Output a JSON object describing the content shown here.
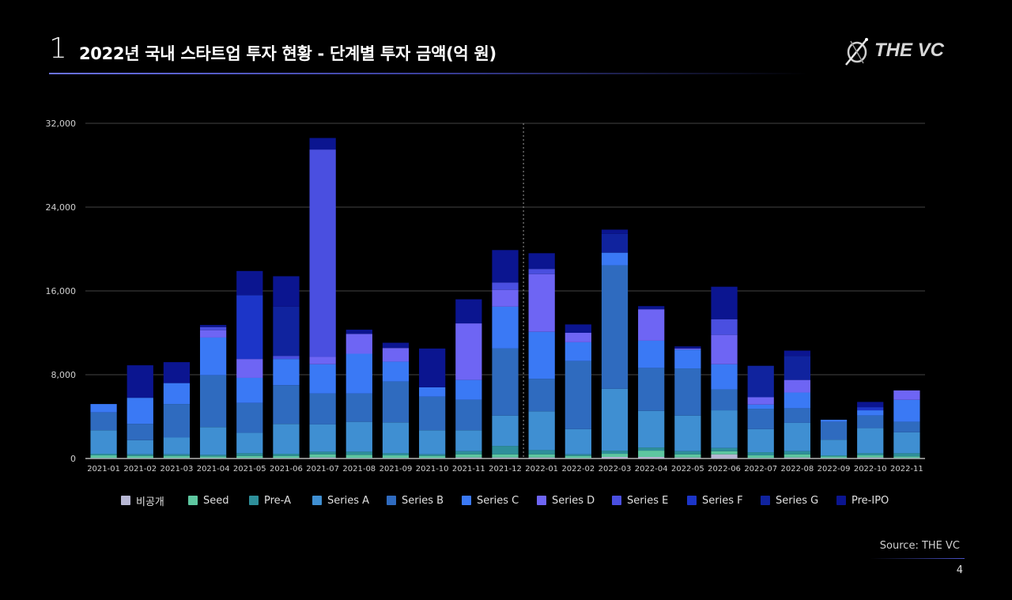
{
  "header": {
    "section_number": "1",
    "title": "2022년 국내 스타트업 투자 현황 - 단계별 투자 금액(억 원)",
    "logo_text": "THE VC"
  },
  "footer": {
    "source": "Source: THE VC",
    "page_number": "4"
  },
  "chart_data": {
    "type": "bar",
    "stacked": true,
    "title": "2022년 국내 스타트업 투자 현황 - 단계별 투자 금액(억 원)",
    "xlabel": "",
    "ylabel": "",
    "ylim": [
      0,
      32000
    ],
    "yticks": [
      0,
      8000,
      16000,
      24000,
      32000
    ],
    "ytick_labels": [
      "0",
      "8,000",
      "16,000",
      "24,000",
      "32,000"
    ],
    "grid": true,
    "divider_after": "2021-12",
    "legend_position": "bottom",
    "categories": [
      "2021-01",
      "2021-02",
      "2021-03",
      "2021-04",
      "2021-05",
      "2021-06",
      "2021-07",
      "2021-08",
      "2021-09",
      "2021-10",
      "2021-11",
      "2021-12",
      "2022-01",
      "2022-02",
      "2022-03",
      "2022-04",
      "2022-05",
      "2022-06",
      "2022-07",
      "2022-08",
      "2022-09",
      "2022-10",
      "2022-11"
    ],
    "series": [
      {
        "name": "비공개",
        "color": "#b7b7d4",
        "values": [
          50,
          50,
          50,
          50,
          50,
          50,
          100,
          50,
          50,
          50,
          100,
          100,
          100,
          50,
          150,
          150,
          100,
          400,
          50,
          100,
          50,
          100,
          50
        ]
      },
      {
        "name": "Seed",
        "color": "#5ec7a0",
        "values": [
          250,
          200,
          200,
          150,
          200,
          200,
          300,
          300,
          250,
          200,
          300,
          300,
          300,
          200,
          300,
          600,
          300,
          300,
          250,
          300,
          150,
          200,
          150
        ]
      },
      {
        "name": "Pre-A",
        "color": "#2e8f9a",
        "values": [
          150,
          150,
          150,
          150,
          250,
          200,
          250,
          300,
          200,
          150,
          300,
          800,
          400,
          150,
          300,
          300,
          300,
          300,
          300,
          300,
          100,
          200,
          300
        ]
      },
      {
        "name": "Series A",
        "color": "#3f8fd2",
        "values": [
          2250,
          1350,
          1600,
          2650,
          1950,
          2850,
          2600,
          2850,
          2950,
          2300,
          2000,
          2900,
          3700,
          2400,
          5900,
          3500,
          3400,
          3600,
          2200,
          2700,
          1500,
          2400,
          2000
        ]
      },
      {
        "name": "Series B",
        "color": "#2f6bbf",
        "values": [
          1700,
          1550,
          3200,
          4950,
          2850,
          3700,
          2950,
          2700,
          3900,
          3200,
          2900,
          6400,
          3100,
          6500,
          11800,
          4100,
          4500,
          2000,
          1950,
          1400,
          1700,
          1200,
          1000
        ]
      },
      {
        "name": "Series C",
        "color": "#3a79f5",
        "values": [
          800,
          2500,
          2000,
          3600,
          2400,
          2500,
          2800,
          3800,
          1900,
          900,
          1900,
          4000,
          4500,
          1800,
          1200,
          2600,
          1800,
          2400,
          400,
          1500,
          200,
          500,
          2100
        ]
      },
      {
        "name": "Series D",
        "color": "#6e65f4",
        "values": [
          0,
          0,
          0,
          700,
          1800,
          0,
          700,
          1900,
          1300,
          0,
          5400,
          1600,
          5500,
          900,
          0,
          3000,
          100,
          2800,
          700,
          1200,
          0,
          0,
          900
        ]
      },
      {
        "name": "Series E",
        "color": "#4a4fe0",
        "values": [
          0,
          0,
          0,
          300,
          0,
          300,
          19800,
          0,
          0,
          0,
          0,
          700,
          500,
          0,
          0,
          0,
          0,
          1500,
          0,
          0,
          0,
          0,
          0
        ]
      },
      {
        "name": "Series F",
        "color": "#1c35c8",
        "values": [
          0,
          0,
          0,
          0,
          6100,
          0,
          0,
          0,
          0,
          0,
          0,
          0,
          0,
          0,
          0,
          0,
          0,
          0,
          0,
          0,
          0,
          300,
          0
        ]
      },
      {
        "name": "Series G",
        "color": "#10239e",
        "values": [
          0,
          0,
          0,
          0,
          0,
          4700,
          0,
          0,
          0,
          0,
          0,
          0,
          0,
          0,
          1800,
          0,
          0,
          0,
          3000,
          2300,
          0,
          0,
          0
        ]
      },
      {
        "name": "Pre-IPO",
        "color": "#0b1590",
        "values": [
          0,
          3100,
          2000,
          200,
          2300,
          2900,
          1100,
          400,
          500,
          3700,
          2300,
          3100,
          1500,
          800,
          400,
          300,
          200,
          3100,
          0,
          500,
          0,
          500,
          0
        ]
      }
    ]
  }
}
